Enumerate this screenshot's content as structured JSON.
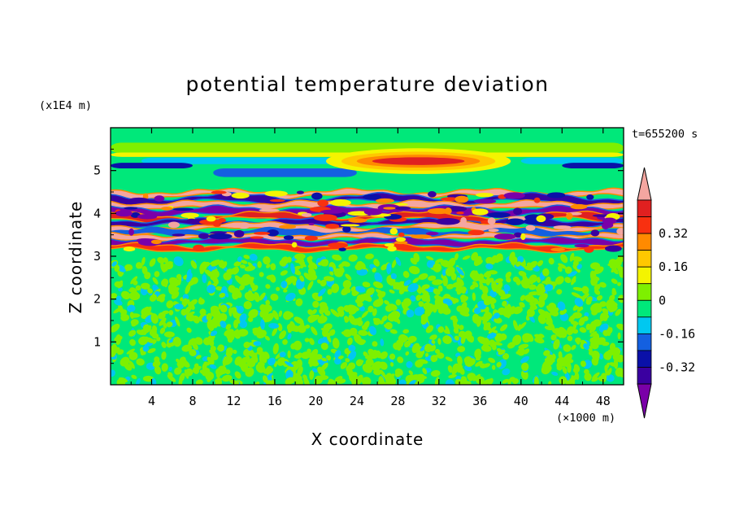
{
  "chart_data": {
    "type": "heatmap",
    "title": "potential temperature deviation",
    "xlabel": "X coordinate",
    "ylabel": "Z coordinate",
    "x_unit": "(×1000 m)",
    "y_unit": "(x1E4 m)",
    "time_label": "t=655200 s",
    "x_range": [
      0,
      50
    ],
    "y_range": [
      0,
      6
    ],
    "x_ticks": [
      "4",
      "8",
      "12",
      "16",
      "20",
      "24",
      "28",
      "32",
      "36",
      "40",
      "44",
      "48"
    ],
    "y_ticks": [
      "1",
      "2",
      "3",
      "4",
      "5"
    ],
    "colorbar": {
      "levels": [
        -0.48,
        -0.4,
        -0.32,
        -0.24,
        -0.16,
        -0.08,
        0,
        0.08,
        0.16,
        0.24,
        0.32,
        0.4,
        0.48
      ],
      "colors": [
        "#7a00a8",
        "#3a00a0",
        "#0a10a8",
        "#1460e0",
        "#00c8f0",
        "#00e87a",
        "#7ef000",
        "#f4f400",
        "#ffc800",
        "#ff8a00",
        "#f83010",
        "#e02020",
        "#f4a6a0"
      ],
      "labels": [
        "0.32",
        "0.16",
        "0",
        "-0.16",
        "-0.32"
      ],
      "extend": "both"
    },
    "field_description": {
      "lower_layer": {
        "z_range": [
          0,
          3
        ],
        "values_range": [
          -0.08,
          0.08
        ],
        "pattern": "fine-scale noise"
      },
      "turbulent_layer": {
        "z_range": [
          3,
          4.5
        ],
        "values_range": [
          -0.48,
          0.48
        ],
        "pattern": "strong layered banding"
      },
      "upper_layer": {
        "z_range": [
          4.5,
          6
        ],
        "values_range": [
          -0.24,
          0.4
        ],
        "pattern": "smooth horizontal bands with warm lens near x=30, z=5.2"
      }
    }
  }
}
